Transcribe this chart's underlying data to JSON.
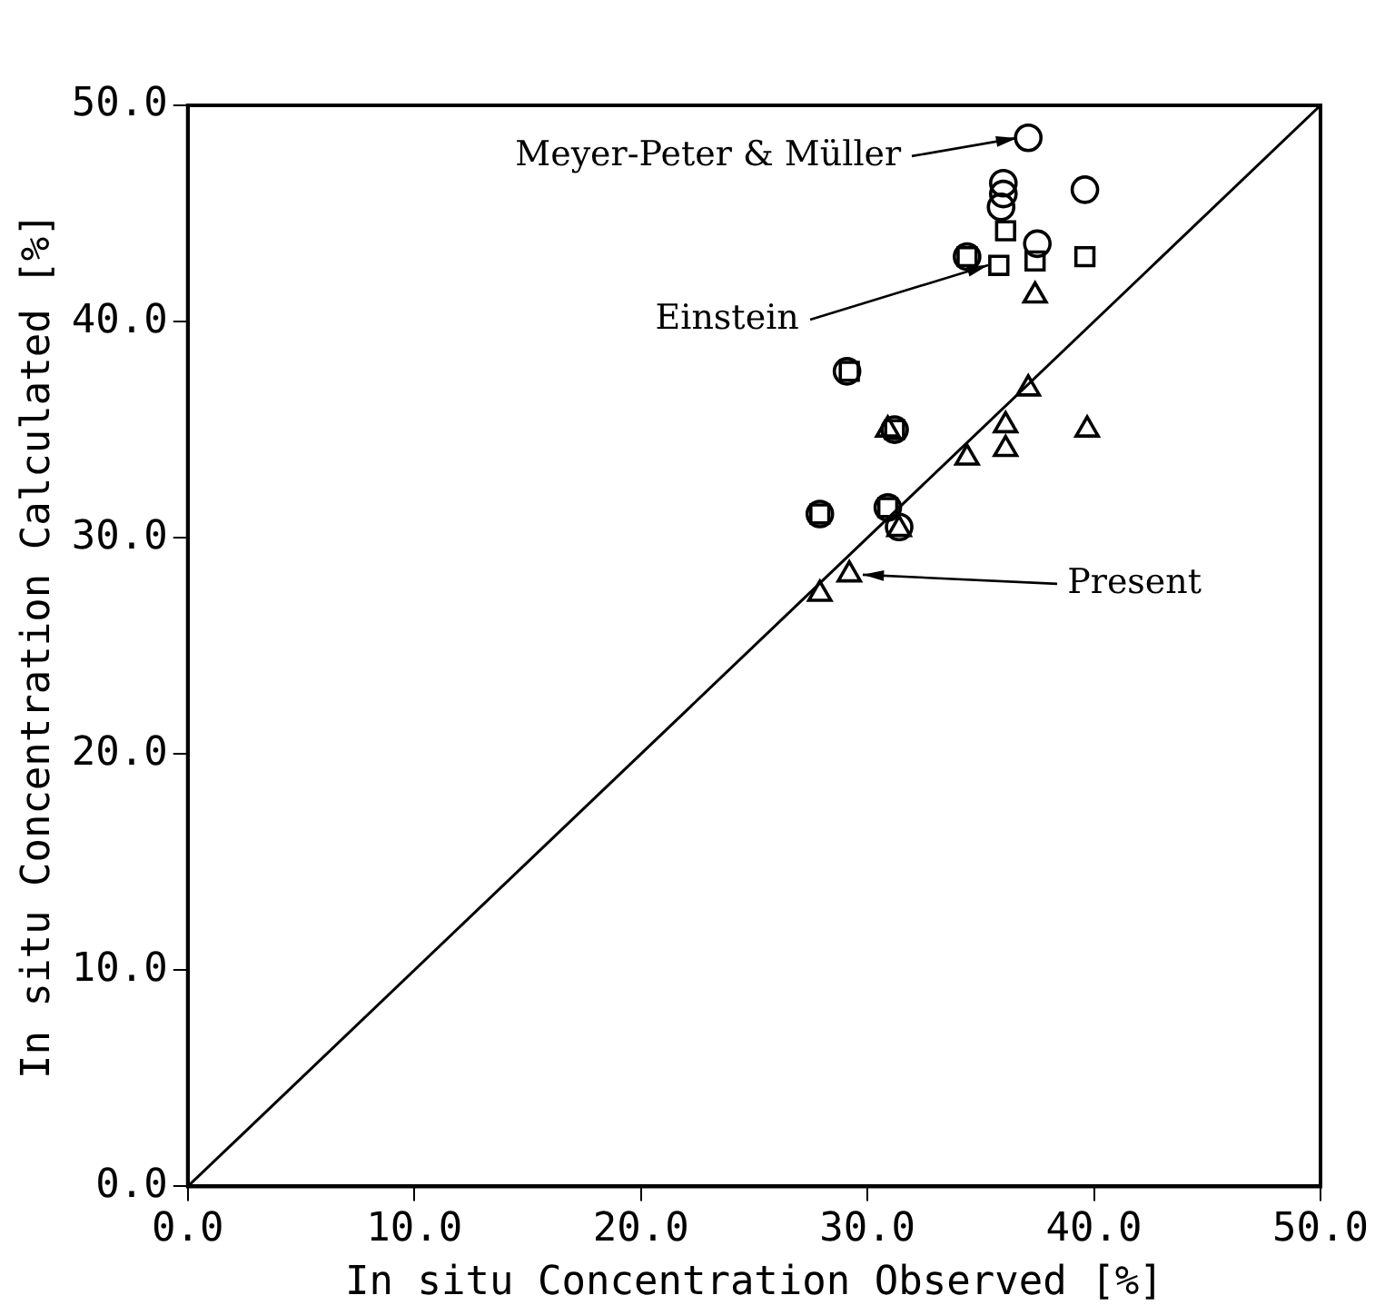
{
  "chart_data": {
    "type": "scatter",
    "xlabel": "In situ Concentration Observed [%]",
    "ylabel": "In situ Concentration Calculated [%]",
    "xlim": [
      0,
      50
    ],
    "ylim": [
      0,
      50
    ],
    "xticks": [
      {
        "value": 0,
        "label": "0.0"
      },
      {
        "value": 10,
        "label": "10.0"
      },
      {
        "value": 20,
        "label": "20.0"
      },
      {
        "value": 30,
        "label": "30.0"
      },
      {
        "value": 40,
        "label": "40.0"
      },
      {
        "value": 50,
        "label": "50.0"
      }
    ],
    "yticks": [
      {
        "value": 0,
        "label": "0.0"
      },
      {
        "value": 10,
        "label": "10.0"
      },
      {
        "value": 20,
        "label": "20.0"
      },
      {
        "value": 30,
        "label": "30.0"
      },
      {
        "value": 40,
        "label": "40.0"
      },
      {
        "value": 50,
        "label": "50.0"
      }
    ],
    "grid": false,
    "legend": false,
    "series": [
      {
        "marker": "circle",
        "color": "#000000",
        "x": [
          37.1,
          36.0,
          36.0,
          35.9,
          39.6,
          37.5,
          34.4,
          29.1,
          27.9,
          30.9,
          31.4,
          31.2
        ],
        "values": [
          48.5,
          46.4,
          45.9,
          45.3,
          46.1,
          43.6,
          43.0,
          37.7,
          31.1,
          31.4,
          30.5,
          35.0
        ]
      },
      {
        "marker": "square",
        "color": "#000000",
        "x": [
          36.1,
          35.8,
          37.4,
          39.6,
          34.4,
          29.2,
          27.9,
          31.2,
          30.9
        ],
        "values": [
          44.2,
          42.6,
          42.8,
          43.0,
          43.0,
          37.7,
          31.1,
          35.0,
          31.4
        ]
      },
      {
        "marker": "triangle",
        "color": "#000000",
        "x": [
          37.4,
          37.1,
          39.7,
          36.1,
          36.1,
          34.4,
          30.9,
          31.4,
          29.2,
          27.9
        ],
        "values": [
          41.2,
          36.9,
          35.0,
          35.2,
          34.1,
          33.7,
          35.0,
          30.4,
          28.3,
          27.4
        ]
      },
      {
        "type": "line",
        "marker": "none",
        "color": "#000000",
        "x": [
          0,
          50
        ],
        "values": [
          0,
          50
        ]
      }
    ],
    "annotations": [
      {
        "text": "Meyer-Peter & Müller",
        "x": 37.1,
        "y": 48.5
      },
      {
        "text": "Einstein",
        "x": 35.8,
        "y": 42.6
      },
      {
        "text": "Present",
        "x": 29.2,
        "y": 28.3
      }
    ]
  }
}
